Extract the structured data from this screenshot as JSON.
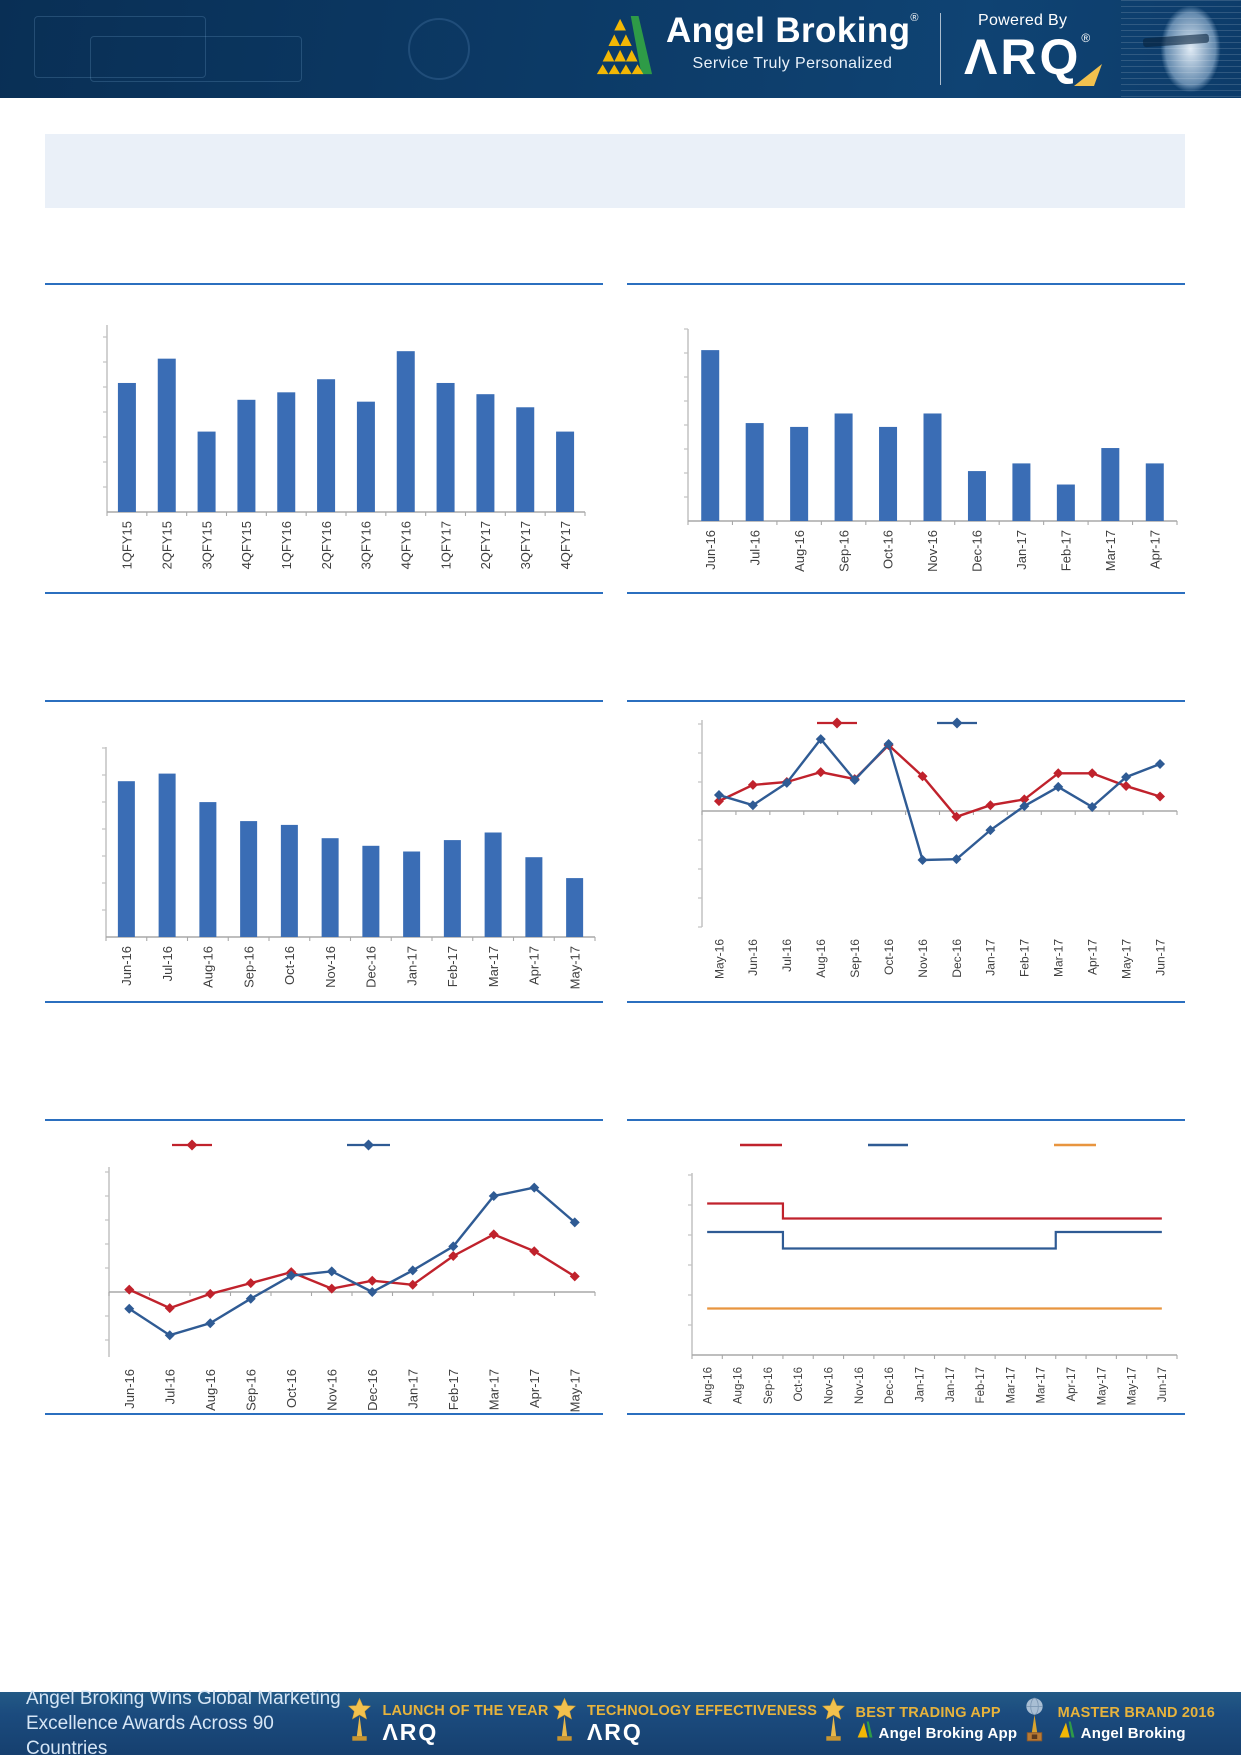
{
  "header": {
    "brand": "Angel Broking",
    "brand_registered": "®",
    "tagline": "Service Truly Personalized",
    "powered_by": "Powered By",
    "arq": "ΛRQ",
    "arq_registered": "®"
  },
  "colors": {
    "bar_blue": "#3A6DB5",
    "line_red": "#C0222C",
    "line_blue": "#2F5B94",
    "line_orange": "#E8953F",
    "separator_blue": "#2B6FBF",
    "axis_gray": "#C2C2C2",
    "label_gray": "#3F3F3F",
    "header_navy": "#0C3A66",
    "footer_navy": "#1B4B7E",
    "award_gold": "#E7B33C",
    "banner_bg": "#EAF0F8"
  },
  "chart_data": [
    {
      "id": "bar-chart-quarterly",
      "type": "bar",
      "categories": [
        "1QFY15",
        "2QFY15",
        "3QFY15",
        "4QFY15",
        "1QFY16",
        "2QFY16",
        "3QFY16",
        "4QFY16",
        "1QFY17",
        "2QFY17",
        "3QFY17",
        "4QFY17"
      ],
      "values": [
        0.69,
        0.82,
        0.43,
        0.6,
        0.64,
        0.71,
        0.59,
        0.86,
        0.69,
        0.63,
        0.56,
        0.43
      ],
      "title": "",
      "xlabel": "",
      "ylabel": "",
      "ylim": [
        0,
        1
      ],
      "bar_color": "#3A6DB5",
      "grid": false,
      "axis_value_labels_visible": false
    },
    {
      "id": "bar-chart-monthly-1",
      "type": "bar",
      "categories": [
        "Jun-16",
        "Jul-16",
        "Aug-16",
        "Sep-16",
        "Oct-16",
        "Nov-16",
        "Dec-16",
        "Jan-17",
        "Feb-17",
        "Mar-17",
        "Apr-17"
      ],
      "values": [
        0.89,
        0.51,
        0.49,
        0.56,
        0.49,
        0.56,
        0.26,
        0.3,
        0.19,
        0.38,
        0.3
      ],
      "title": "",
      "xlabel": "",
      "ylabel": "",
      "ylim": [
        0,
        1
      ],
      "bar_color": "#3A6DB5",
      "grid": false,
      "axis_value_labels_visible": false
    },
    {
      "id": "bar-chart-monthly-2",
      "type": "bar",
      "categories": [
        "Jun-16",
        "Jul-16",
        "Aug-16",
        "Sep-16",
        "Oct-16",
        "Nov-16",
        "Dec-16",
        "Jan-17",
        "Feb-17",
        "Mar-17",
        "Apr-17",
        "May-17"
      ],
      "values": [
        0.82,
        0.86,
        0.71,
        0.61,
        0.59,
        0.52,
        0.48,
        0.45,
        0.51,
        0.55,
        0.42,
        0.31
      ],
      "title": "",
      "xlabel": "",
      "ylabel": "",
      "ylim": [
        0,
        1
      ],
      "bar_color": "#3A6DB5",
      "grid": false,
      "axis_value_labels_visible": false
    },
    {
      "id": "line-chart-dual-1",
      "type": "line",
      "categories": [
        "May-16",
        "Jun-16",
        "Jul-16",
        "Aug-16",
        "Sep-16",
        "Oct-16",
        "Nov-16",
        "Dec-16",
        "Jan-17",
        "Feb-17",
        "Mar-17",
        "Apr-17",
        "May-17",
        "Jun-17"
      ],
      "series": [
        {
          "name": "series-red",
          "color": "#C0222C",
          "marker": "diamond",
          "values": [
            0.34,
            0.9,
            1.0,
            1.34,
            1.1,
            2.27,
            1.2,
            -0.2,
            0.2,
            0.4,
            1.3,
            1.3,
            0.86,
            0.5
          ]
        },
        {
          "name": "series-blue",
          "color": "#2F5B94",
          "marker": "diamond",
          "values": [
            0.55,
            0.2,
            0.97,
            2.48,
            1.07,
            2.31,
            -1.69,
            -1.66,
            -0.66,
            0.17,
            0.83,
            0.14,
            1.17,
            1.62
          ]
        }
      ],
      "title": "",
      "xlabel": "",
      "ylabel": "",
      "ylim": [
        -3.3,
        3.1
      ],
      "legend_position": "top",
      "legend_labels_visible": false,
      "grid": false,
      "axis_value_labels_visible": false
    },
    {
      "id": "line-chart-dual-2",
      "type": "line",
      "categories": [
        "Jun-16",
        "Jul-16",
        "Aug-16",
        "Sep-16",
        "Oct-16",
        "Nov-16",
        "Dec-16",
        "Jan-17",
        "Feb-17",
        "Mar-17",
        "Apr-17",
        "May-17"
      ],
      "series": [
        {
          "name": "series-red",
          "color": "#C0222C",
          "marker": "diamond",
          "values": [
            0.1,
            -0.67,
            -0.08,
            0.37,
            0.83,
            0.14,
            0.47,
            0.3,
            1.5,
            2.4,
            1.7,
            0.65
          ]
        },
        {
          "name": "series-blue",
          "color": "#2F5B94",
          "marker": "diamond",
          "values": [
            -0.7,
            -1.8,
            -1.3,
            -0.28,
            0.68,
            0.86,
            0.0,
            0.9,
            1.9,
            4.0,
            4.35,
            2.9
          ]
        }
      ],
      "title": "",
      "xlabel": "",
      "ylabel": "",
      "ylim": [
        -2.7,
        5.2
      ],
      "legend_position": "top",
      "legend_labels_visible": false,
      "grid": false,
      "axis_value_labels_visible": false
    },
    {
      "id": "line-chart-triple-step",
      "type": "line",
      "categories": [
        "Aug-16",
        "Aug-16",
        "Sep-16",
        "Oct-16",
        "Nov-16",
        "Nov-16",
        "Dec-16",
        "Jan-17",
        "Jan-17",
        "Feb-17",
        "Mar-17",
        "Mar-17",
        "Apr-17",
        "May-17",
        "May-17",
        "Jun-17"
      ],
      "series": [
        {
          "name": "series-red",
          "color": "#C0222C",
          "marker": "none",
          "values": [
            5.05,
            5.05,
            5.05,
            4.55,
            4.55,
            4.55,
            4.55,
            4.55,
            4.55,
            4.55,
            4.55,
            4.55,
            4.55,
            4.55,
            4.55,
            4.55
          ]
        },
        {
          "name": "series-blue",
          "color": "#2F5B94",
          "marker": "none",
          "values": [
            4.1,
            4.1,
            4.1,
            3.55,
            3.55,
            3.55,
            3.55,
            3.55,
            3.55,
            3.55,
            3.55,
            3.55,
            4.1,
            4.1,
            4.1,
            4.1
          ]
        },
        {
          "name": "series-orange",
          "color": "#E8953F",
          "marker": "none",
          "values": [
            1.55,
            1.55,
            1.55,
            1.55,
            1.55,
            1.55,
            1.55,
            1.55,
            1.55,
            1.55,
            1.55,
            1.55,
            1.55,
            1.55,
            1.55,
            1.55
          ]
        }
      ],
      "title": "",
      "xlabel": "",
      "ylabel": "",
      "ylim": [
        0,
        6.1
      ],
      "legend_position": "top",
      "legend_labels_visible": false,
      "grid": false,
      "axis_value_labels_visible": false
    }
  ],
  "footer": {
    "headline_line1": "Angel Broking Wins Global Marketing",
    "headline_line2": "Excellence Awards Across 90 Countries",
    "awards": [
      {
        "title": "LAUNCH OF THE YEAR",
        "subtitle": "ΛRQ",
        "icon": "star-trophy"
      },
      {
        "title": "TECHNOLOGY EFFECTIVENESS",
        "subtitle": "ΛRQ",
        "icon": "star-trophy"
      },
      {
        "title": "BEST TRADING APP",
        "subtitle": "Angel Broking App",
        "icon": "star-trophy"
      },
      {
        "title": "MASTER BRAND 2016",
        "subtitle": "Angel Broking",
        "icon": "globe-trophy"
      }
    ]
  }
}
